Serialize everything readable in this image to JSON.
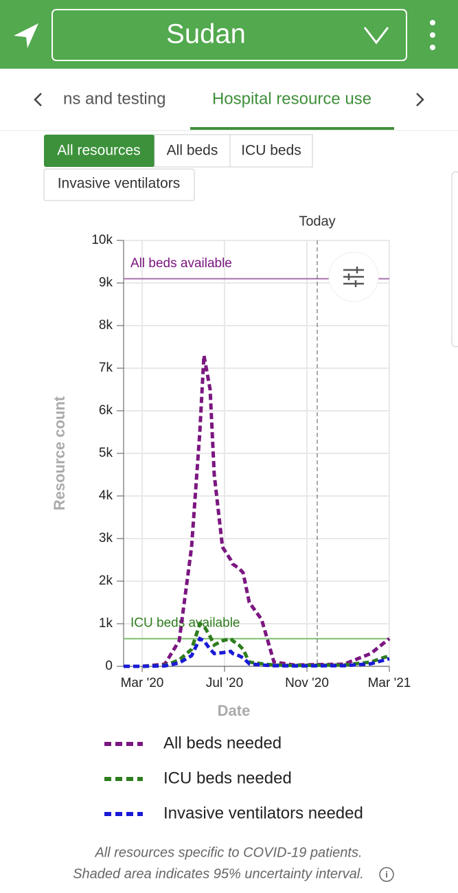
{
  "header": {
    "title": "Sudan"
  },
  "tabs": [
    "ns and testing",
    "Hospital resource use"
  ],
  "filters": [
    "All resources",
    "All beds",
    "ICU beds",
    "Invasive ventilators"
  ],
  "chart_data": {
    "type": "line",
    "xlabel": "Date",
    "ylabel": "Resource count",
    "xlim": [
      -0.9,
      12
    ],
    "ylim": [
      0,
      10000
    ],
    "xticks": [
      {
        "value": 0,
        "label": "Mar '20"
      },
      {
        "value": 4,
        "label": "Jul '20"
      },
      {
        "value": 8,
        "label": "Nov '20"
      },
      {
        "value": 12,
        "label": "Mar '21"
      }
    ],
    "yticks": [
      0,
      {
        "value": 1000,
        "label": "1k"
      },
      {
        "value": 2000,
        "label": "2k"
      },
      {
        "value": 3000,
        "label": "3k"
      },
      {
        "value": 4000,
        "label": "4k"
      },
      {
        "value": 5000,
        "label": "5k"
      },
      {
        "value": 6000,
        "label": "6k"
      },
      {
        "value": 7000,
        "label": "7k"
      },
      {
        "value": 8000,
        "label": "8k"
      },
      {
        "value": 9000,
        "label": "9k"
      },
      {
        "value": 10000,
        "label": "10k"
      }
    ],
    "grid": true,
    "x": [
      -0.9,
      0,
      1.1,
      1.8,
      2.4,
      2.8,
      3.0,
      3.3,
      3.5,
      3.9,
      4.3,
      4.4,
      4.7,
      4.9,
      5.2,
      5.8,
      6.4,
      7.4,
      9.8,
      11.1,
      12
    ],
    "series": [
      {
        "name": "All beds needed",
        "color": "#7b1680",
        "values": [
          0,
          0,
          50,
          600,
          2800,
          5500,
          7300,
          6500,
          4500,
          2800,
          2500,
          2400,
          2300,
          2200,
          1500,
          1100,
          100,
          30,
          50,
          300,
          650
        ]
      },
      {
        "name": "ICU beds needed",
        "color": "#2e7d1e",
        "values": [
          0,
          0,
          20,
          150,
          400,
          1000,
          950,
          700,
          500,
          600,
          650,
          600,
          500,
          400,
          100,
          60,
          30,
          20,
          30,
          100,
          250
        ]
      },
      {
        "name": "Invasive ventilators needed",
        "color": "#1a1ad6",
        "values": [
          0,
          0,
          10,
          80,
          250,
          650,
          600,
          400,
          300,
          320,
          350,
          300,
          250,
          200,
          60,
          30,
          15,
          10,
          15,
          60,
          180
        ]
      }
    ],
    "reference_lines": [
      {
        "label": "All beds available",
        "value": 9100,
        "color": "#a870ac"
      },
      {
        "label": "ICU beds available",
        "value": 650,
        "color": "#7cbf6f"
      }
    ],
    "today": {
      "label": "Today",
      "x": 8.5
    }
  },
  "footnote": [
    "All resources specific to COVID-19 patients.",
    "Shaded area indicates 95% uncertainty interval."
  ]
}
